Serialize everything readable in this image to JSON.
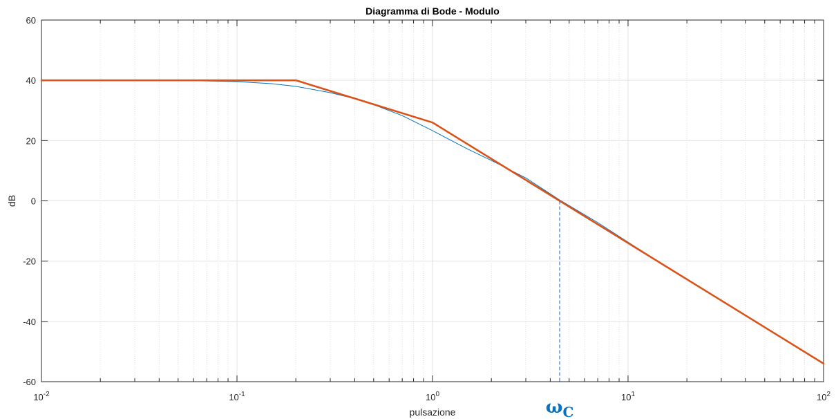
{
  "chart_data": {
    "type": "line",
    "title": "Diagramma di Bode - Modulo",
    "xlabel": "pulsazione",
    "ylabel": "dB",
    "xscale": "log",
    "xlim": [
      0.01,
      100
    ],
    "ylim": [
      -60,
      60
    ],
    "xticks": [
      0.01,
      0.1,
      1,
      10,
      100
    ],
    "xtick_labels": [
      {
        "base": "10",
        "exp": "-2"
      },
      {
        "base": "10",
        "exp": "-1"
      },
      {
        "base": "10",
        "exp": "0"
      },
      {
        "base": "10",
        "exp": "1"
      },
      {
        "base": "10",
        "exp": "2"
      }
    ],
    "yticks": [
      60,
      40,
      20,
      0,
      -20,
      -40,
      -60
    ],
    "grid": true,
    "series": [
      {
        "role": "exact",
        "color": "#0072bd",
        "x": [
          0.01,
          0.02,
          0.05,
          0.1,
          0.15,
          0.2,
          0.3,
          0.4,
          0.5,
          0.7,
          1,
          1.5,
          2,
          3,
          4.47,
          7,
          10,
          20,
          50,
          100
        ],
        "y": [
          40.0,
          39.99,
          39.95,
          39.57,
          38.9,
          38.0,
          35.9,
          33.9,
          31.9,
          28.3,
          23.3,
          17.3,
          13.4,
          7.6,
          0.3,
          -7.2,
          -13.7,
          -26.1,
          -42.0,
          -54.0
        ]
      },
      {
        "role": "asymptotic",
        "color": "#d95319",
        "x": [
          0.01,
          0.2,
          1,
          4.47,
          100
        ],
        "y": [
          40,
          40,
          26,
          0,
          -54
        ]
      }
    ],
    "annotations": [
      {
        "type": "vertical-dashed",
        "x": 4.47,
        "y_from": 0,
        "y_to": -60,
        "color": "#4472c4"
      },
      {
        "type": "label",
        "symbol": "ω",
        "sub": "C",
        "x": 4.47,
        "color": "#0a72bd"
      }
    ]
  }
}
